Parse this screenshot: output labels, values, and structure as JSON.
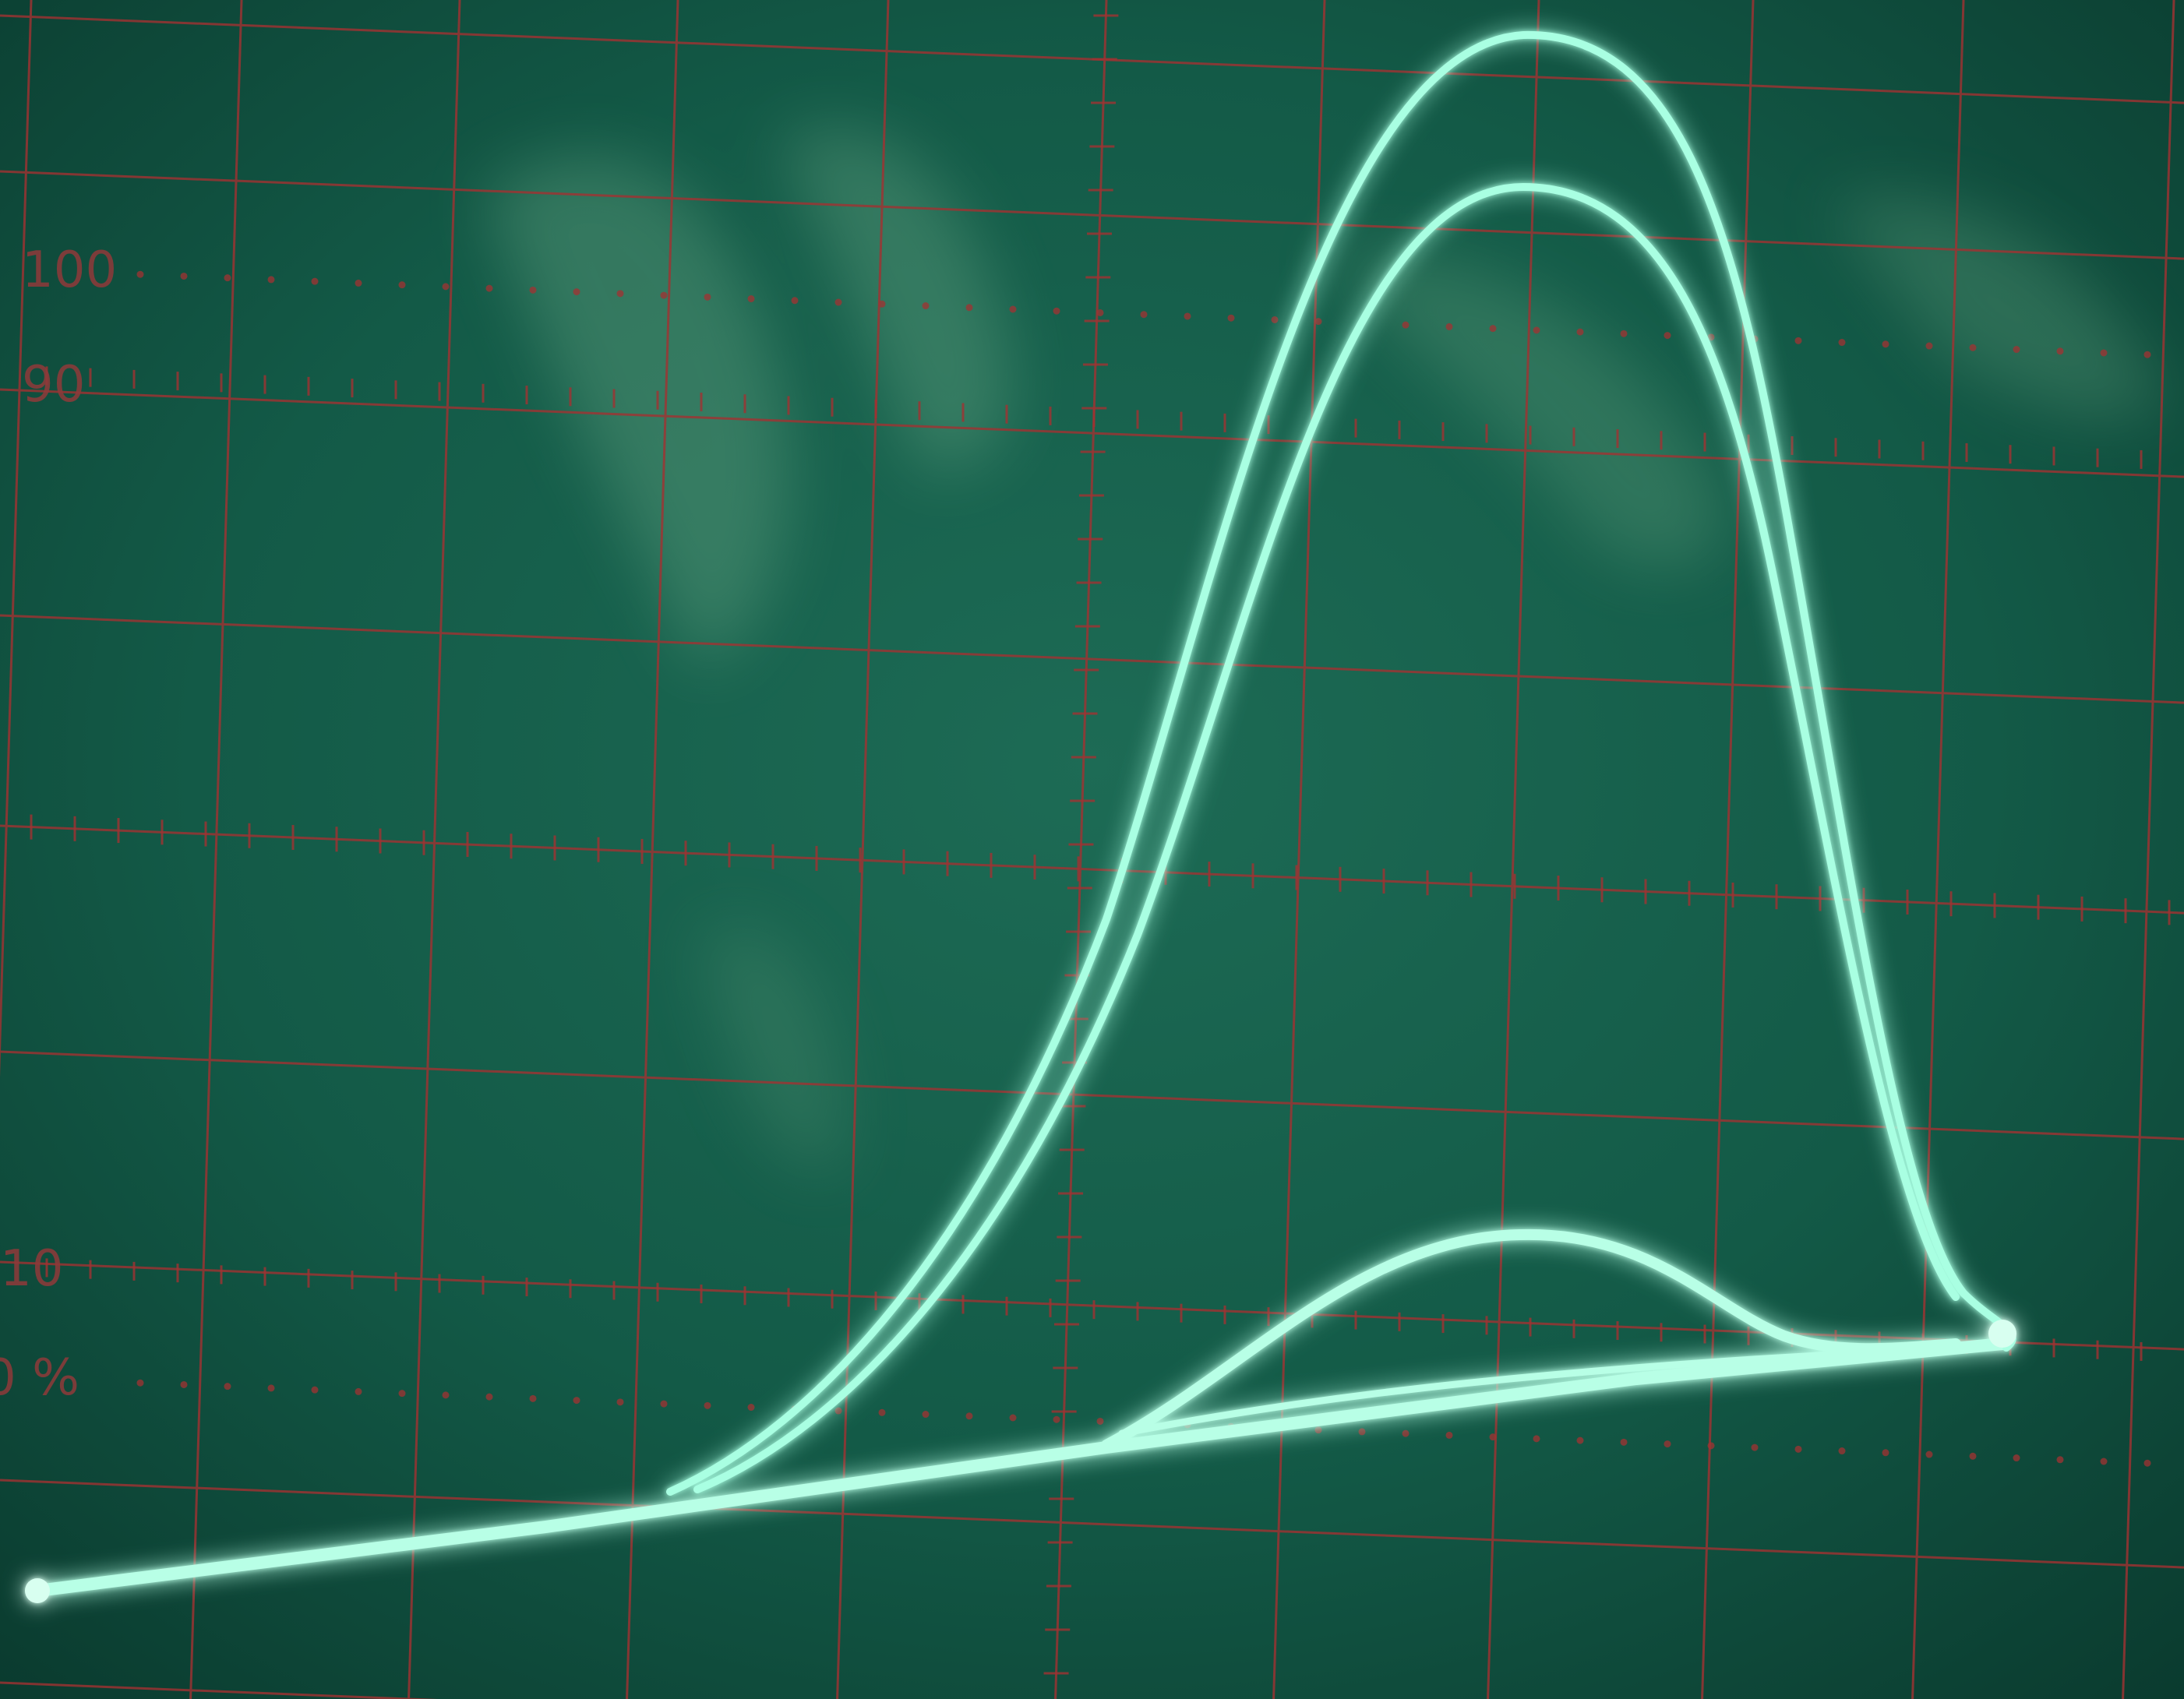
{
  "graticule": {
    "labels": [
      "100",
      "90",
      "10",
      "0 %"
    ],
    "line_color": "#a23232",
    "screen_color": "#0f4a3c"
  },
  "traces": {
    "color": "#9ffce0",
    "glow_color": "#2dff9b",
    "count": 4
  }
}
